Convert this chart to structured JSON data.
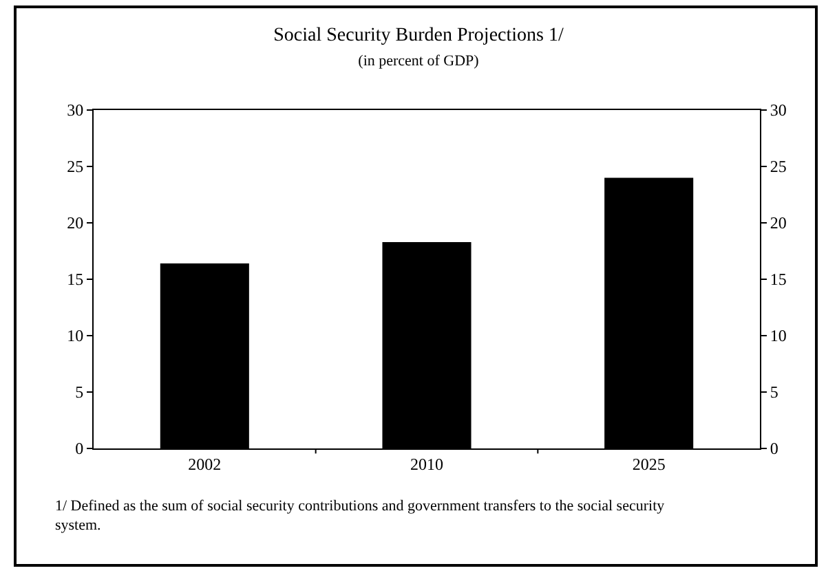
{
  "chart_data": {
    "type": "bar",
    "title": "Social Security Burden Projections 1/",
    "subtitle": "(in percent of GDP)",
    "categories": [
      "2002",
      "2010",
      "2025"
    ],
    "values": [
      16.4,
      18.3,
      24.0
    ],
    "color": "#000000",
    "ylim": [
      0,
      30
    ],
    "yticks": [
      0,
      5,
      10,
      15,
      20,
      25,
      30
    ],
    "y2lim": [
      0,
      30
    ],
    "y2ticks": [
      0,
      5,
      10,
      15,
      20,
      25,
      30
    ],
    "annotations": [
      "1/ Defined as the sum of social security contributions and government transfers to the social security system."
    ]
  }
}
